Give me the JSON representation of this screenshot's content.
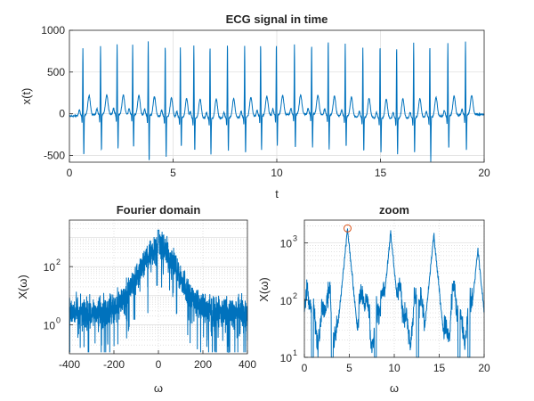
{
  "colors": {
    "line": "#0072BD",
    "marker": "#D95319",
    "axis": "#262626"
  },
  "chart_data": [
    {
      "type": "line",
      "title": "ECG signal in time",
      "xlabel": "t",
      "ylabel": "x(t)",
      "xlim": [
        0,
        20
      ],
      "ylim": [
        -580,
        1000
      ],
      "xticks": [
        0,
        5,
        10,
        15,
        20
      ],
      "yticks": [
        -500,
        0,
        500,
        1000
      ],
      "grid": true,
      "beat_times": [
        0.65,
        1.5,
        2.3,
        3.05,
        3.8,
        4.62,
        5.35,
        6.0,
        6.78,
        7.62,
        8.45,
        9.22,
        9.98,
        10.85,
        11.68,
        12.48,
        13.3,
        14.15,
        14.98,
        15.78,
        16.6,
        17.38,
        18.25,
        19.1
      ],
      "r_peak_values": [
        775,
        790,
        810,
        800,
        860,
        830,
        820,
        840,
        830,
        870,
        830,
        845,
        830,
        800,
        810,
        870,
        840,
        800,
        850,
        830,
        870,
        840,
        840,
        850
      ],
      "s_trough_values": [
        -520,
        -470,
        -450,
        -430,
        -590,
        -520,
        -380,
        -430,
        -470,
        -430,
        -470,
        -440,
        -400,
        -450,
        -430,
        -450,
        -400,
        -450,
        -440,
        -460,
        -450,
        -560,
        -430,
        -470
      ],
      "baseline": -30
    },
    {
      "type": "line",
      "title": "Fourier domain",
      "xlabel": "ω",
      "ylabel": "X(ω)",
      "xlim": [
        -400,
        400
      ],
      "ylim_log10": [
        -1,
        3.6
      ],
      "yscale": "log",
      "xticks": [
        -400,
        -200,
        0,
        200,
        400
      ],
      "yticks": [
        "10^0",
        "10^2"
      ],
      "grid": true,
      "envelope": {
        "center": 0,
        "peak": 1800,
        "floor": 2.5,
        "width": 90
      }
    },
    {
      "type": "line",
      "title": "zoom",
      "xlabel": "ω",
      "ylabel": "X(ω)",
      "xlim": [
        0,
        20
      ],
      "ylim_log10": [
        1,
        3.4
      ],
      "yscale": "log",
      "xticks": [
        0,
        5,
        10,
        15,
        20
      ],
      "yticks": [
        "10^1",
        "10^2",
        "10^3"
      ],
      "grid": true,
      "peaks": [
        {
          "x": 4.8,
          "y": 1800
        },
        {
          "x": 9.6,
          "y": 1500
        },
        {
          "x": 14.4,
          "y": 1400
        },
        {
          "x": 19.3,
          "y": 800
        }
      ],
      "marker": {
        "x": 4.8,
        "y": 1800,
        "shape": "circle"
      }
    }
  ]
}
